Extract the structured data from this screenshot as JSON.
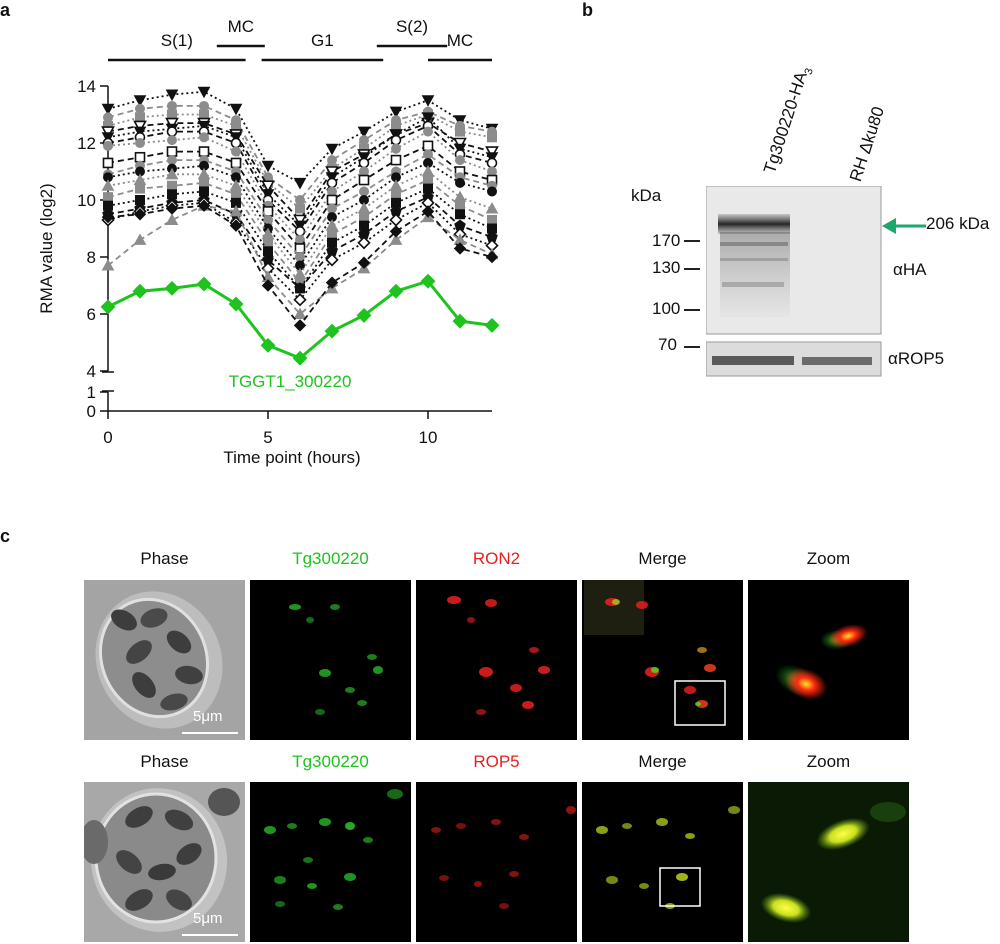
{
  "panels": {
    "a": "a",
    "b": "b",
    "c": "c"
  },
  "chart_data": {
    "type": "line",
    "title": "",
    "xlabel": "Time point (hours)",
    "ylabel": "RMA value (log2)",
    "xlim": [
      0,
      12
    ],
    "ylim": [
      0,
      14
    ],
    "axis_break": [
      1,
      4
    ],
    "x_ticks": [
      0,
      5,
      10
    ],
    "y_ticks_upper": [
      4,
      6,
      8,
      10,
      12,
      14
    ],
    "y_ticks_lower": [
      0,
      1
    ],
    "x": [
      0,
      1,
      2,
      3,
      4,
      5,
      6,
      7,
      8,
      9,
      10,
      11,
      12
    ],
    "phases": [
      {
        "label": "S(1)",
        "start": 0,
        "end": 4.3
      },
      {
        "label": "MC",
        "start": 3.4,
        "end": 4.9
      },
      {
        "label": "G1",
        "start": 4.8,
        "end": 8.6
      },
      {
        "label": "S(2)",
        "start": 8.4,
        "end": 10.6
      },
      {
        "label": "MC",
        "start": 10.0,
        "end": 12.0
      }
    ],
    "highlight_label": "TGGT1_300220",
    "highlight_color": "#1ec31e",
    "series": [
      {
        "values": [
          6.25,
          6.8,
          6.9,
          7.05,
          6.35,
          4.9,
          4.45,
          5.4,
          5.95,
          6.8,
          7.15,
          5.75,
          5.6
        ],
        "color": "#1ec31e",
        "marker": "diamond-filled",
        "style": "solid",
        "highlight": true
      },
      {
        "values": [
          13.2,
          13.5,
          13.7,
          13.8,
          13.2,
          11.2,
          10.6,
          11.8,
          12.4,
          13.1,
          13.5,
          12.8,
          12.5
        ],
        "color": "#111111",
        "marker": "triangle-down-filled",
        "style": "dotted"
      },
      {
        "values": [
          12.9,
          13.2,
          13.3,
          13.3,
          12.8,
          10.8,
          10.0,
          11.4,
          12.1,
          12.8,
          13.1,
          12.6,
          12.4
        ],
        "color": "#8c8c8c",
        "marker": "circle-filled",
        "style": "dashed"
      },
      {
        "values": [
          12.6,
          12.9,
          13.0,
          13.0,
          12.6,
          10.6,
          9.7,
          11.1,
          11.8,
          12.6,
          13.0,
          12.4,
          12.2
        ],
        "color": "#8c8c8c",
        "marker": "square-filled",
        "style": "dotted"
      },
      {
        "values": [
          12.4,
          12.6,
          12.7,
          12.7,
          12.3,
          10.5,
          9.3,
          11.0,
          11.6,
          12.3,
          12.7,
          12.0,
          11.7
        ],
        "color": "#111111",
        "marker": "triangle-down-open",
        "style": "dashed"
      },
      {
        "values": [
          12.2,
          12.4,
          12.5,
          12.6,
          12.2,
          10.2,
          9.1,
          10.8,
          11.5,
          12.3,
          12.9,
          11.8,
          11.5
        ],
        "color": "#111111",
        "marker": "triangle-down-filled",
        "style": "dotted"
      },
      {
        "values": [
          12.0,
          12.2,
          12.4,
          12.4,
          12.0,
          10.0,
          8.9,
          10.6,
          11.3,
          12.1,
          12.6,
          11.6,
          11.3
        ],
        "color": "#111111",
        "marker": "circle-open",
        "style": "dashed"
      },
      {
        "values": [
          11.9,
          12.0,
          12.1,
          12.2,
          11.7,
          9.8,
          8.6,
          10.3,
          11.0,
          11.8,
          12.4,
          11.4,
          11.0
        ],
        "color": "#8c8c8c",
        "marker": "circle-filled",
        "style": "dotted"
      },
      {
        "values": [
          11.3,
          11.5,
          11.7,
          11.7,
          11.3,
          9.6,
          8.3,
          10.0,
          10.7,
          11.4,
          11.9,
          11.0,
          10.7
        ],
        "color": "#111111",
        "marker": "square-open",
        "style": "dashed"
      },
      {
        "values": [
          10.9,
          11.2,
          11.4,
          11.4,
          11.0,
          9.3,
          8.0,
          9.7,
          10.3,
          11.0,
          11.6,
          10.8,
          10.5
        ],
        "color": "#8c8c8c",
        "marker": "circle-filled",
        "style": "dashed"
      },
      {
        "values": [
          10.8,
          11.0,
          11.1,
          11.2,
          10.8,
          9.0,
          7.7,
          9.4,
          10.0,
          10.8,
          11.3,
          10.6,
          10.3
        ],
        "color": "#111111",
        "marker": "circle-filled",
        "style": "dotted"
      },
      {
        "values": [
          10.5,
          10.7,
          10.9,
          10.9,
          10.5,
          8.8,
          7.4,
          9.1,
          9.7,
          10.5,
          11.0,
          10.1,
          9.7
        ],
        "color": "#8c8c8c",
        "marker": "triangle-up-filled",
        "style": "dotted"
      },
      {
        "values": [
          10.1,
          10.4,
          10.5,
          10.6,
          10.2,
          8.5,
          7.1,
          8.8,
          9.4,
          10.2,
          10.7,
          9.8,
          9.3
        ],
        "color": "#8c8c8c",
        "marker": "square-filled",
        "style": "dashed"
      },
      {
        "values": [
          9.8,
          10.0,
          10.2,
          10.3,
          9.9,
          8.2,
          6.9,
          8.5,
          9.1,
          9.9,
          10.4,
          9.5,
          9.0
        ],
        "color": "#111111",
        "marker": "square-filled",
        "style": "dotted"
      },
      {
        "values": [
          9.5,
          9.7,
          9.9,
          10.0,
          9.5,
          7.9,
          6.9,
          8.2,
          8.8,
          9.6,
          10.1,
          9.1,
          8.7
        ],
        "color": "#111111",
        "marker": "pentagon-filled",
        "style": "dashed"
      },
      {
        "values": [
          9.3,
          9.6,
          9.8,
          9.9,
          9.2,
          7.6,
          6.5,
          7.9,
          8.5,
          9.3,
          9.9,
          8.8,
          8.4
        ],
        "color": "#111111",
        "marker": "diamond-open",
        "style": "dotted"
      },
      {
        "values": [
          7.7,
          8.6,
          9.3,
          9.8,
          9.6,
          7.3,
          6.0,
          6.9,
          7.6,
          8.6,
          9.4,
          8.6,
          8.1
        ],
        "color": "#8c8c8c",
        "marker": "triangle-up-filled",
        "style": "dashed"
      },
      {
        "values": [
          9.4,
          9.5,
          9.7,
          9.8,
          9.1,
          7.0,
          5.6,
          7.1,
          7.8,
          8.9,
          9.6,
          8.3,
          8.0
        ],
        "color": "#111111",
        "marker": "diamond-filled",
        "style": "dashed"
      }
    ]
  },
  "blot": {
    "lanes": [
      "Tg300220-HA",
      "RH Δku80"
    ],
    "lane1_subscript": "3",
    "kda_label": "kDa",
    "markers": [
      "170",
      "130",
      "100",
      "70"
    ],
    "arrow_label": "206 kDa",
    "antibody_top": "αHA",
    "antibody_bottom": "αROP5",
    "arrow_color": "#1ea86a"
  },
  "microscopy": {
    "rows": [
      {
        "headers": [
          "Phase",
          "Tg300220",
          "RON2",
          "Merge",
          "Zoom"
        ],
        "scalebar": "5μm"
      },
      {
        "headers": [
          "Phase",
          "Tg300220",
          "ROP5",
          "Merge",
          "Zoom"
        ],
        "scalebar": "5μm"
      }
    ],
    "header_colors": [
      "#111111",
      "#1ec31e",
      "#e62020",
      "#111111",
      "#111111"
    ]
  }
}
